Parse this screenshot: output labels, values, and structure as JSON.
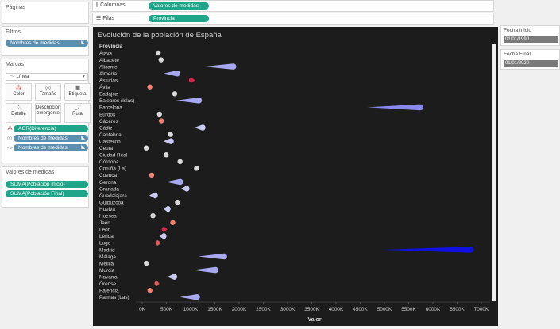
{
  "left_panel": {
    "pages_title": "Páginas",
    "filters_title": "Filtros",
    "filter_pill": "Nombres de medidas",
    "marks_title": "Marcas",
    "mark_type": "Línea",
    "buttons": [
      "Color",
      "Tamaño",
      "Etiqueta",
      "Detalle",
      "Descripción emergente",
      "Ruta"
    ],
    "mark_pills": [
      "AGR(Diferencia)",
      "Nombres de medidas",
      "Nombres de medidas"
    ],
    "measure_values_title": "Valores de medidas",
    "measure_pills": [
      "SUMA(Población Inicio)",
      "SUMA(Población Final)"
    ]
  },
  "shelves": {
    "columns_label": "Columnas",
    "columns_pill": "Valores de medidas",
    "rows_label": "Filas",
    "rows_pill": "Provincia"
  },
  "right_panel": {
    "start_label": "Fecha Inicio",
    "start_value": "01/01/1990",
    "end_label": "Fecha Final",
    "end_value": "01/01/2020"
  },
  "chart_data": {
    "type": "line",
    "title": "Evolución de la población de España",
    "row_header": "Provincia",
    "xlabel": "Valor",
    "xlim": [
      0,
      7000000
    ],
    "x_ticks": [
      "0K",
      "500K",
      "1000K",
      "1500K",
      "2000K",
      "2500K",
      "3000K",
      "3500K",
      "4000K",
      "4500K",
      "5000K",
      "5500K",
      "6000K",
      "6500K",
      "7000K"
    ],
    "series": [
      {
        "name": "SUMA(Población Inicio)"
      },
      {
        "name": "SUMA(Población Final)"
      }
    ],
    "provinces": [
      {
        "name": "Álava",
        "start": 270000,
        "end": 330000,
        "kind": "dot",
        "color": "#d9d9d9"
      },
      {
        "name": "Albacete",
        "start": 340000,
        "end": 390000,
        "kind": "dot",
        "color": "#d9d9d9"
      },
      {
        "name": "Alicante",
        "start": 1280000,
        "end": 1880000,
        "kind": "grow",
        "color": "#a8a8f0"
      },
      {
        "name": "Almería",
        "start": 450000,
        "end": 720000,
        "kind": "grow",
        "color": "#a8a8f0"
      },
      {
        "name": "Asturias",
        "start": 1090000,
        "end": 1020000,
        "kind": "shrink",
        "color": "#d8264a"
      },
      {
        "name": "Ávila",
        "start": 175000,
        "end": 158000,
        "kind": "dot",
        "color": "#f08070"
      },
      {
        "name": "Badajoz",
        "start": 650000,
        "end": 672000,
        "kind": "dot",
        "color": "#d9d9d9"
      },
      {
        "name": "Baleares (Islas)",
        "start": 700000,
        "end": 1170000,
        "kind": "grow",
        "color": "#a8a8f0"
      },
      {
        "name": "Barcelona",
        "start": 4650000,
        "end": 5740000,
        "kind": "grow",
        "color": "#8888ee"
      },
      {
        "name": "Burgos",
        "start": 355000,
        "end": 357000,
        "kind": "dot",
        "color": "#d9d9d9"
      },
      {
        "name": "Cáceres",
        "start": 410000,
        "end": 395000,
        "kind": "dot",
        "color": "#f08070"
      },
      {
        "name": "Cádiz",
        "start": 1080000,
        "end": 1245000,
        "kind": "grow",
        "color": "#c8c8f0"
      },
      {
        "name": "Cantabria",
        "start": 525000,
        "end": 583000,
        "kind": "dot",
        "color": "#d9d9d9"
      },
      {
        "name": "Castellón",
        "start": 440000,
        "end": 590000,
        "kind": "grow",
        "color": "#c8c8f0"
      },
      {
        "name": "Ceuta",
        "start": 68000,
        "end": 84000,
        "kind": "dot",
        "color": "#d9d9d9"
      },
      {
        "name": "Ciudad Real",
        "start": 475000,
        "end": 496000,
        "kind": "dot",
        "color": "#d9d9d9"
      },
      {
        "name": "Córdoba",
        "start": 750000,
        "end": 782000,
        "kind": "dot",
        "color": "#d9d9d9"
      },
      {
        "name": "Coruña (La)",
        "start": 1100000,
        "end": 1121000,
        "kind": "dot",
        "color": "#d9d9d9"
      },
      {
        "name": "Cuenca",
        "start": 210000,
        "end": 196000,
        "kind": "dot",
        "color": "#f08070"
      },
      {
        "name": "Gerona",
        "start": 495000,
        "end": 781000,
        "kind": "grow",
        "color": "#a8a8f0"
      },
      {
        "name": "Granada",
        "start": 800000,
        "end": 915000,
        "kind": "grow",
        "color": "#c8c8f0"
      },
      {
        "name": "Guadalajara",
        "start": 146000,
        "end": 261000,
        "kind": "grow",
        "color": "#c8c8f0"
      },
      {
        "name": "Guipúzcoa",
        "start": 680000,
        "end": 727000,
        "kind": "dot",
        "color": "#d9d9d9"
      },
      {
        "name": "Huelva",
        "start": 440000,
        "end": 525000,
        "kind": "grow",
        "color": "#c8c8f0"
      },
      {
        "name": "Huesca",
        "start": 208000,
        "end": 222000,
        "kind": "dot",
        "color": "#d9d9d9"
      },
      {
        "name": "Jaén",
        "start": 640000,
        "end": 631000,
        "kind": "dot",
        "color": "#f08070"
      },
      {
        "name": "León",
        "start": 520000,
        "end": 456000,
        "kind": "shrink",
        "color": "#d8264a"
      },
      {
        "name": "Lérida",
        "start": 355000,
        "end": 439000,
        "kind": "grow",
        "color": "#c8c8f0"
      },
      {
        "name": "Lugo",
        "start": 385000,
        "end": 327000,
        "kind": "shrink",
        "color": "#e05a5a"
      },
      {
        "name": "Madrid",
        "start": 4950000,
        "end": 6780000,
        "kind": "grow",
        "color": "#1010e0"
      },
      {
        "name": "Málaga",
        "start": 1160000,
        "end": 1690000,
        "kind": "grow",
        "color": "#a8a8f0"
      },
      {
        "name": "Melilla",
        "start": 56000,
        "end": 87000,
        "kind": "dot",
        "color": "#d9d9d9"
      },
      {
        "name": "Murcia",
        "start": 1045000,
        "end": 1510000,
        "kind": "grow",
        "color": "#a8a8f0"
      },
      {
        "name": "Navarra",
        "start": 520000,
        "end": 660000,
        "kind": "grow",
        "color": "#c8c8f0"
      },
      {
        "name": "Orense",
        "start": 355000,
        "end": 306000,
        "kind": "shrink",
        "color": "#e05a5a"
      },
      {
        "name": "Palencia",
        "start": 186000,
        "end": 160000,
        "kind": "dot",
        "color": "#f08070"
      },
      {
        "name": "Palmas (Las)",
        "start": 780000,
        "end": 1130000,
        "kind": "grow",
        "color": "#a8a8f0"
      }
    ]
  }
}
